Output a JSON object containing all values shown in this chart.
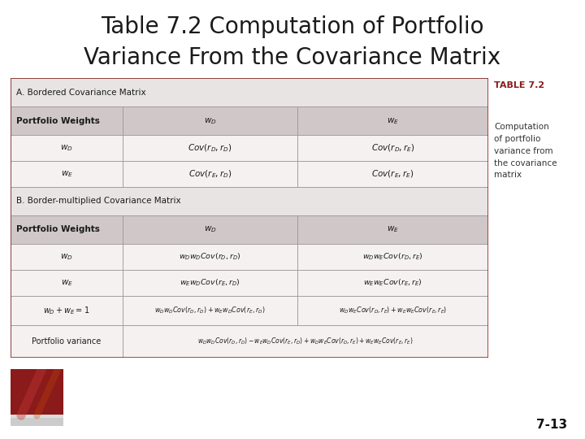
{
  "title_line1": "Table 7.2 Computation of Portfolio",
  "title_line2": "Variance From the Covariance Matrix",
  "title_fontsize": 20,
  "title_color": "#1a1a1a",
  "bg_color": "#ffffff",
  "table_outer_bg": "#e8e4e4",
  "section_label_bg": "#e8e4e4",
  "header_bg": "#d0c8c8",
  "data_row_bg": "#f5f1f1",
  "sidebar_title": "TABLE 7.2",
  "sidebar_title_color": "#8B1A1A",
  "sidebar_text": "Computation\nof portfolio\nvariance from\nthe covariance\nmatrix",
  "page_num": "7-13",
  "section_A_label": "A. Bordered Covariance Matrix",
  "section_B_label": "B. Border-multiplied Covariance Matrix",
  "footer_bar_color": "#c0baba",
  "logo_color": "#8B1A1A"
}
